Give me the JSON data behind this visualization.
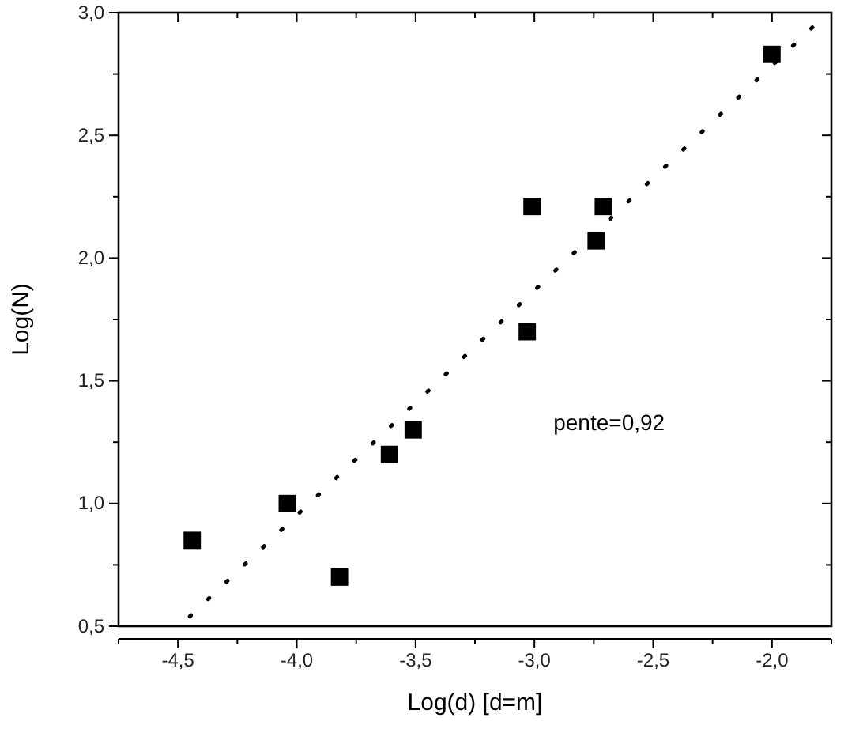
{
  "chart_data": {
    "type": "scatter",
    "xlabel": "Log(d) [d=m]",
    "ylabel": "Log(N)",
    "marker": "square",
    "grid": false,
    "xlim": [
      -4.75,
      -1.75
    ],
    "xticks": [
      {
        "value": -4.75,
        "label": null
      },
      {
        "value": -4.5,
        "label": "-4,5"
      },
      {
        "value": -4.25,
        "label": null
      },
      {
        "value": -4.0,
        "label": "-4,0"
      },
      {
        "value": -3.75,
        "label": null
      },
      {
        "value": -3.5,
        "label": "-3,5"
      },
      {
        "value": -3.25,
        "label": null
      },
      {
        "value": -3.0,
        "label": "-3,0"
      },
      {
        "value": -2.75,
        "label": null
      },
      {
        "value": -2.5,
        "label": "-2,5"
      },
      {
        "value": -2.25,
        "label": null
      },
      {
        "value": -2.0,
        "label": "-2,0"
      },
      {
        "value": -1.75,
        "label": null
      }
    ],
    "ylim": [
      0.5,
      3.0
    ],
    "yticks": [
      {
        "value": 0.5,
        "label": "0,5"
      },
      {
        "value": 0.75,
        "label": null
      },
      {
        "value": 1.0,
        "label": "1,0"
      },
      {
        "value": 1.25,
        "label": null
      },
      {
        "value": 1.5,
        "label": "1,5"
      },
      {
        "value": 1.75,
        "label": null
      },
      {
        "value": 2.0,
        "label": "2,0"
      },
      {
        "value": 2.25,
        "label": null
      },
      {
        "value": 2.5,
        "label": "2,5"
      },
      {
        "value": 2.75,
        "label": null
      },
      {
        "value": 3.0,
        "label": "3,0"
      }
    ],
    "series": [
      {
        "color": "#000000",
        "x": [
          -4.44,
          -4.04,
          -3.82,
          -3.61,
          -3.51,
          -3.03,
          -3.01,
          -2.74,
          -2.71,
          -2.0
        ],
        "values": [
          0.85,
          1.0,
          0.7,
          1.2,
          1.3,
          1.7,
          2.21,
          2.07,
          2.21,
          2.83
        ]
      },
      {
        "type": "line",
        "color": "#000000",
        "line_style": "dotted",
        "marker": "none",
        "x": [
          -4.45,
          -1.83
        ],
        "values": [
          0.54,
          2.94
        ]
      }
    ],
    "annotations": [
      "pente=0,92"
    ]
  }
}
